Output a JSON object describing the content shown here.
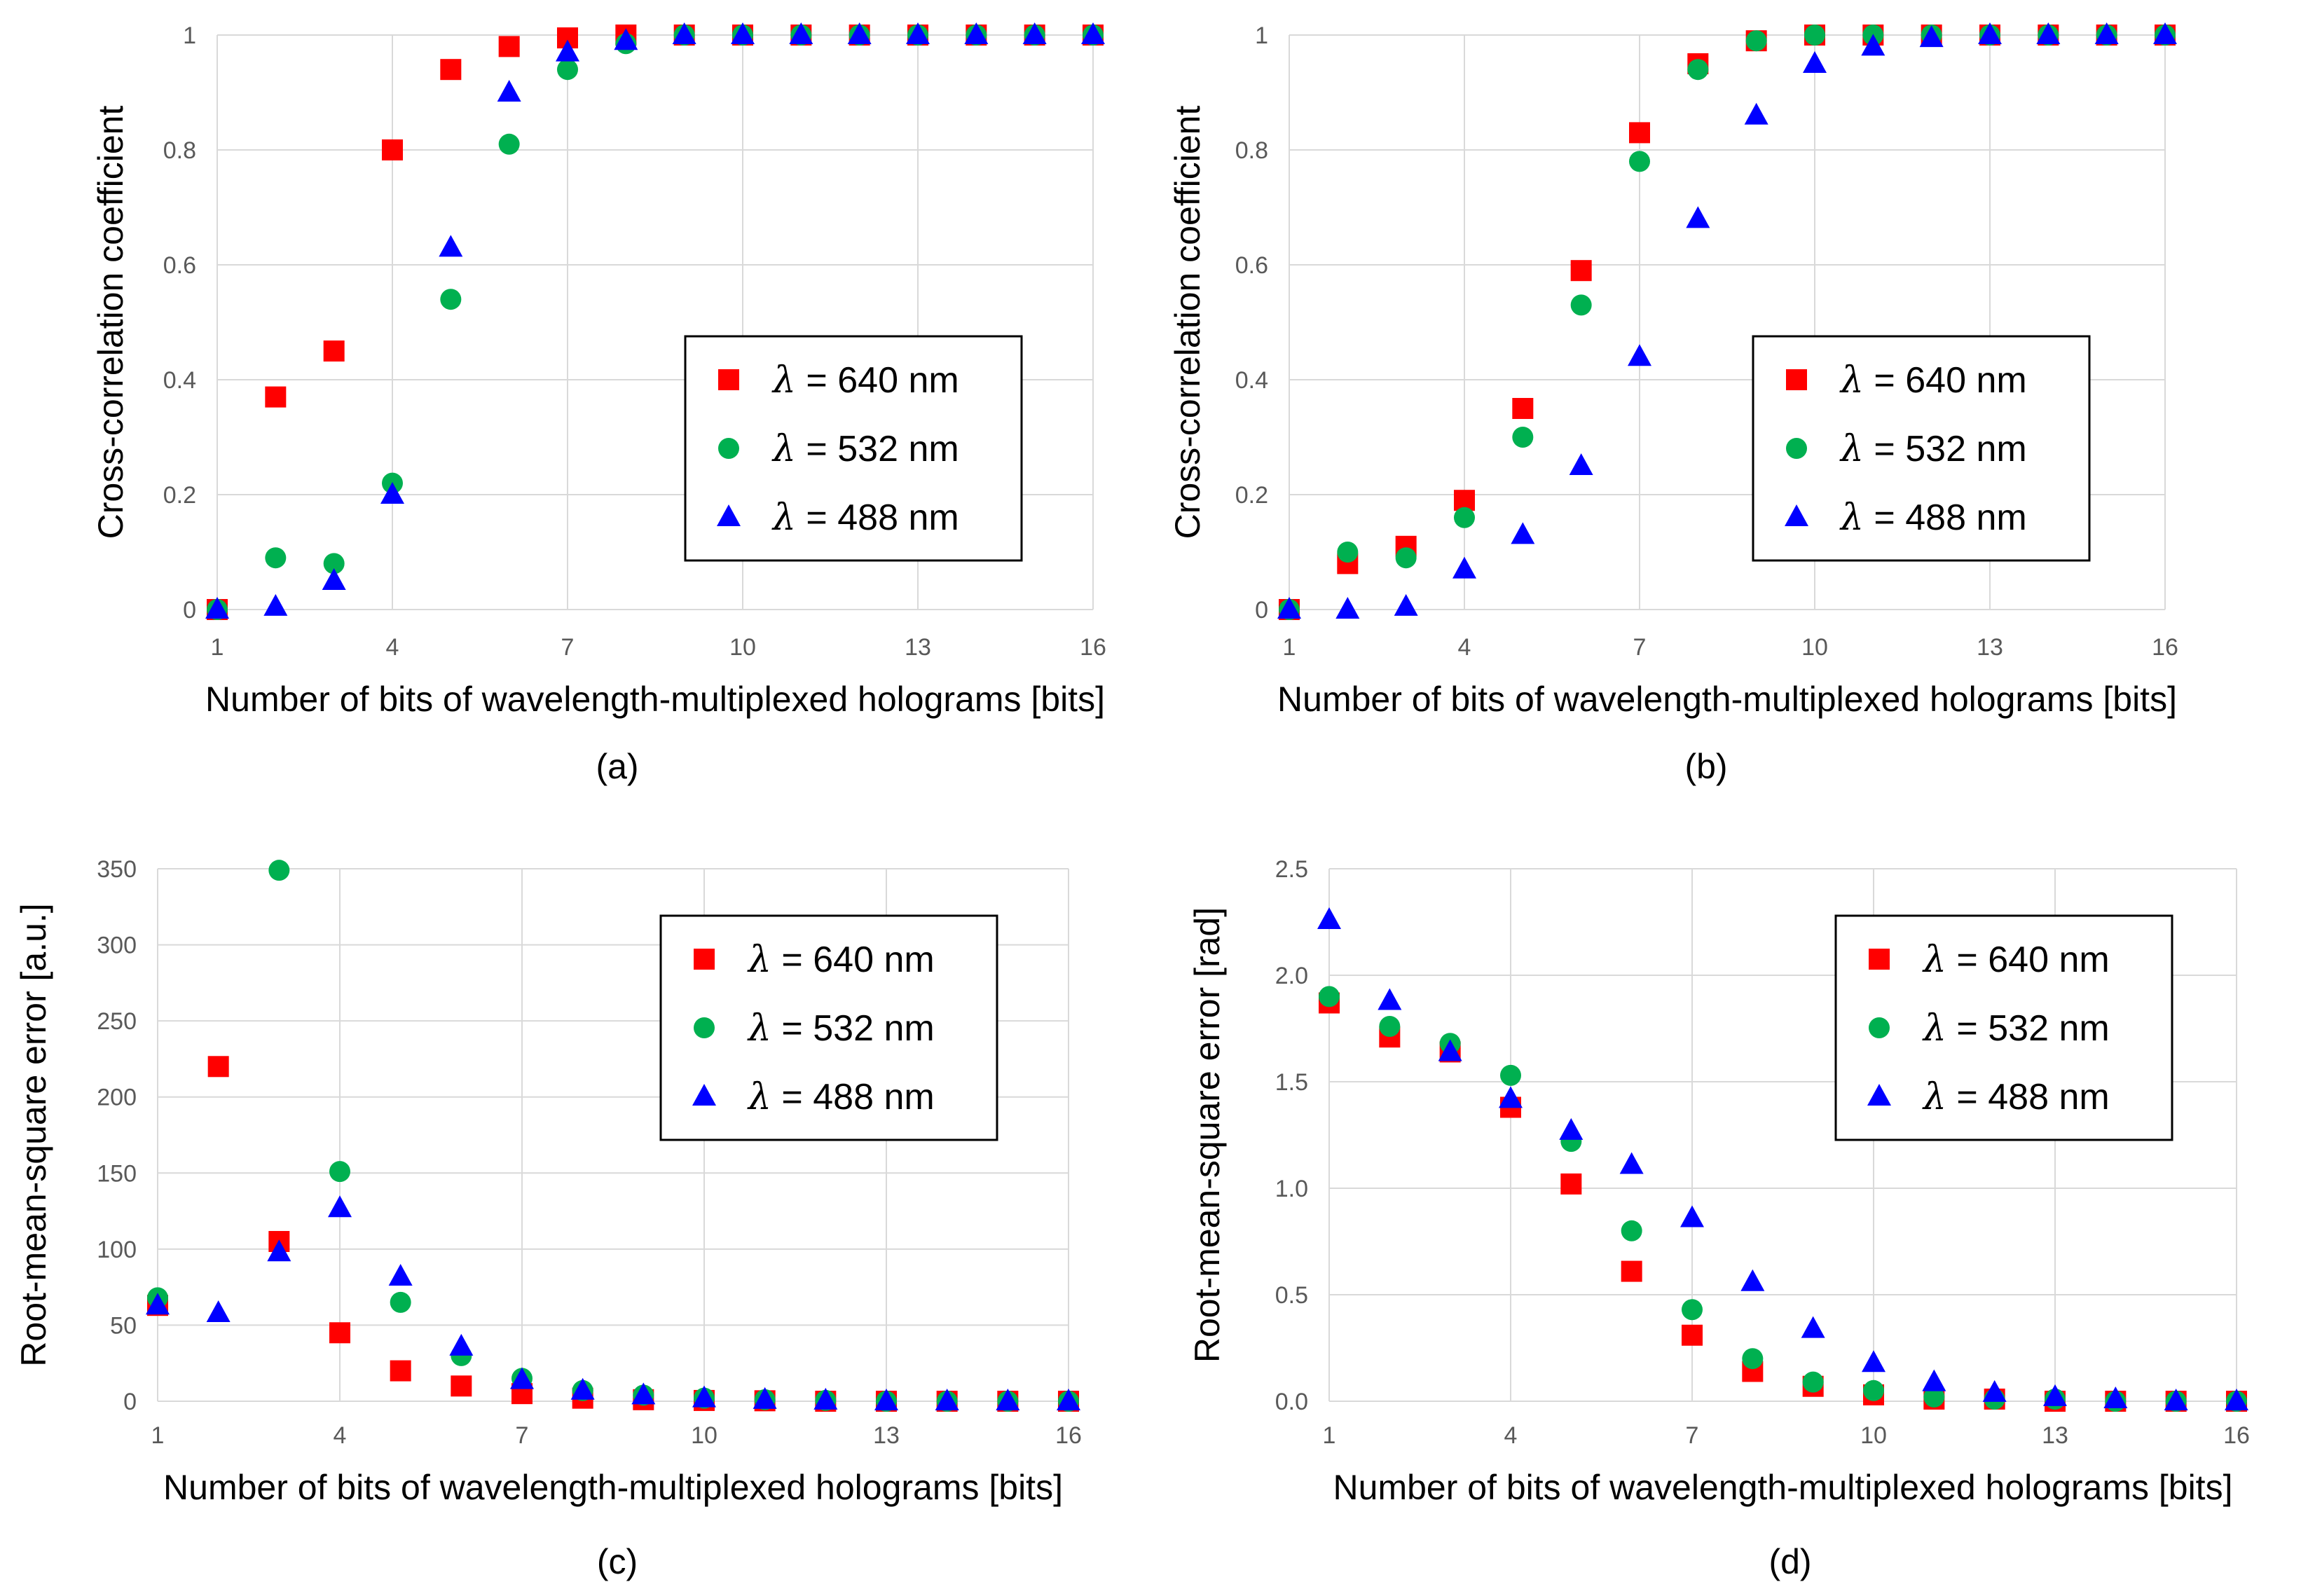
{
  "colors": {
    "red": "#ff0000",
    "green": "#00b050",
    "blue": "#0000ff",
    "grid": "#d9d9d9"
  },
  "legend": [
    {
      "symbol": "λ",
      "label": " = 640 nm",
      "marker": "square-icon",
      "color": "#ff0000"
    },
    {
      "symbol": "λ",
      "label": " = 532 nm",
      "marker": "circle-icon",
      "color": "#00b050"
    },
    {
      "symbol": "λ",
      "label": " = 488 nm",
      "marker": "triangle-icon",
      "color": "#0000ff"
    }
  ],
  "chart_data": [
    {
      "id": "a",
      "caption": "(a)",
      "type": "scatter",
      "xlabel": "Number of bits of wavelength-multiplexed holograms [bits]",
      "ylabel": "Cross-correlation coefficient",
      "xlim": [
        1,
        16
      ],
      "xticks": [
        1,
        4,
        7,
        10,
        13,
        16
      ],
      "ylim": [
        0,
        1
      ],
      "yticks": [
        0,
        0.2,
        0.4,
        0.6,
        0.8,
        1
      ],
      "ytick_labels": [
        "0",
        "0.2",
        "0.4",
        "0.6",
        "0.8",
        "1"
      ],
      "x": [
        1,
        2,
        3,
        4,
        5,
        6,
        7,
        8,
        9,
        10,
        11,
        12,
        13,
        14,
        15,
        16
      ],
      "series": [
        {
          "name": "λ = 640 nm",
          "marker": "square",
          "values": [
            0,
            0.37,
            0.45,
            0.8,
            0.94,
            0.98,
            0.995,
            1,
            1,
            1,
            1,
            1,
            1,
            1,
            1,
            1
          ]
        },
        {
          "name": "λ = 532 nm",
          "marker": "circle",
          "values": [
            0,
            0.09,
            0.08,
            0.22,
            0.54,
            0.81,
            0.94,
            0.985,
            1,
            1,
            1,
            1,
            1,
            1,
            1,
            1
          ]
        },
        {
          "name": "λ = 488 nm",
          "marker": "triangle",
          "values": [
            0,
            0.005,
            0.05,
            0.2,
            0.63,
            0.9,
            0.97,
            0.99,
            1,
            1,
            1,
            1,
            1,
            1,
            1,
            1
          ]
        }
      ]
    },
    {
      "id": "b",
      "caption": "(b)",
      "type": "scatter",
      "xlabel": "Number of bits of wavelength-multiplexed holograms [bits]",
      "ylabel": "Cross-correlation coefficient",
      "xlim": [
        1,
        16
      ],
      "xticks": [
        1,
        4,
        7,
        10,
        13,
        16
      ],
      "ylim": [
        0,
        1
      ],
      "yticks": [
        0,
        0.2,
        0.4,
        0.6,
        0.8,
        1
      ],
      "ytick_labels": [
        "0",
        "0.2",
        "0.4",
        "0.6",
        "0.8",
        "1"
      ],
      "x": [
        1,
        2,
        3,
        4,
        5,
        6,
        7,
        8,
        9,
        10,
        11,
        12,
        13,
        14,
        15,
        16
      ],
      "series": [
        {
          "name": "λ = 640 nm",
          "marker": "square",
          "values": [
            0,
            0.08,
            0.11,
            0.19,
            0.35,
            0.59,
            0.83,
            0.95,
            0.99,
            1,
            1,
            1,
            1,
            1,
            1,
            1
          ]
        },
        {
          "name": "λ = 532 nm",
          "marker": "circle",
          "values": [
            0,
            0.1,
            0.09,
            0.16,
            0.3,
            0.53,
            0.78,
            0.94,
            0.99,
            1,
            1,
            1,
            1,
            1,
            1,
            1
          ]
        },
        {
          "name": "λ = 488 nm",
          "marker": "triangle",
          "values": [
            0,
            0,
            0.005,
            0.07,
            0.13,
            0.25,
            0.44,
            0.68,
            0.86,
            0.95,
            0.98,
            0.995,
            1,
            1,
            1,
            1
          ]
        }
      ]
    },
    {
      "id": "c",
      "caption": "(c)",
      "type": "scatter",
      "xlabel": "Number of bits of wavelength-multiplexed holograms [bits]",
      "ylabel": "Root-mean-square error [a.u.]",
      "xlim": [
        1,
        16
      ],
      "xticks": [
        1,
        4,
        7,
        10,
        13,
        16
      ],
      "ylim": [
        0,
        350
      ],
      "yticks": [
        0,
        50,
        100,
        150,
        200,
        250,
        300,
        350
      ],
      "ytick_labels": [
        "0",
        "50",
        "100",
        "150",
        "200",
        "250",
        "300",
        "350"
      ],
      "x": [
        1,
        2,
        3,
        4,
        5,
        6,
        7,
        8,
        9,
        10,
        11,
        12,
        13,
        14,
        15,
        16
      ],
      "series": [
        {
          "name": "λ = 640 nm",
          "marker": "square",
          "values": [
            63,
            220,
            105,
            45,
            20,
            10,
            5,
            2,
            1,
            0.5,
            0.3,
            0,
            0,
            0,
            0,
            0
          ]
        },
        {
          "name": "λ = 532 nm",
          "marker": "circle",
          "values": [
            68,
            null,
            349,
            151,
            65,
            30,
            15,
            7,
            4,
            2,
            1,
            0.5,
            0,
            0,
            0,
            0
          ]
        },
        {
          "name": "λ = 488 nm",
          "marker": "triangle",
          "values": [
            63,
            58,
            98,
            127,
            82,
            36,
            14,
            7,
            4,
            2,
            1,
            0.5,
            0,
            0,
            0,
            0
          ]
        }
      ]
    },
    {
      "id": "d",
      "caption": "(d)",
      "type": "scatter",
      "xlabel": "Number of bits of wavelength-multiplexed holograms [bits]",
      "ylabel": "Root-mean-square error [rad]",
      "xlim": [
        1,
        16
      ],
      "xticks": [
        1,
        4,
        7,
        10,
        13,
        16
      ],
      "ylim": [
        0,
        2.5
      ],
      "yticks": [
        0,
        0.5,
        1.0,
        1.5,
        2.0,
        2.5
      ],
      "ytick_labels": [
        "0.0",
        "0.5",
        "1.0",
        "1.5",
        "2.0",
        "2.5"
      ],
      "x": [
        1,
        2,
        3,
        4,
        5,
        6,
        7,
        8,
        9,
        10,
        11,
        12,
        13,
        14,
        15,
        16
      ],
      "series": [
        {
          "name": "λ = 640 nm",
          "marker": "square",
          "values": [
            1.87,
            1.71,
            1.64,
            1.38,
            1.02,
            0.61,
            0.31,
            0.14,
            0.07,
            0.03,
            0.01,
            0.01,
            0,
            0,
            0,
            0
          ]
        },
        {
          "name": "λ = 532 nm",
          "marker": "circle",
          "values": [
            1.9,
            1.76,
            1.68,
            1.53,
            1.22,
            0.8,
            0.43,
            0.2,
            0.09,
            0.05,
            0.02,
            0.01,
            0.01,
            0,
            0,
            0
          ]
        },
        {
          "name": "λ = 488 nm",
          "marker": "triangle",
          "values": [
            2.26,
            1.88,
            1.64,
            1.42,
            1.27,
            1.11,
            0.86,
            0.56,
            0.34,
            0.18,
            0.09,
            0.04,
            0.02,
            0.01,
            0,
            0
          ]
        }
      ]
    }
  ]
}
